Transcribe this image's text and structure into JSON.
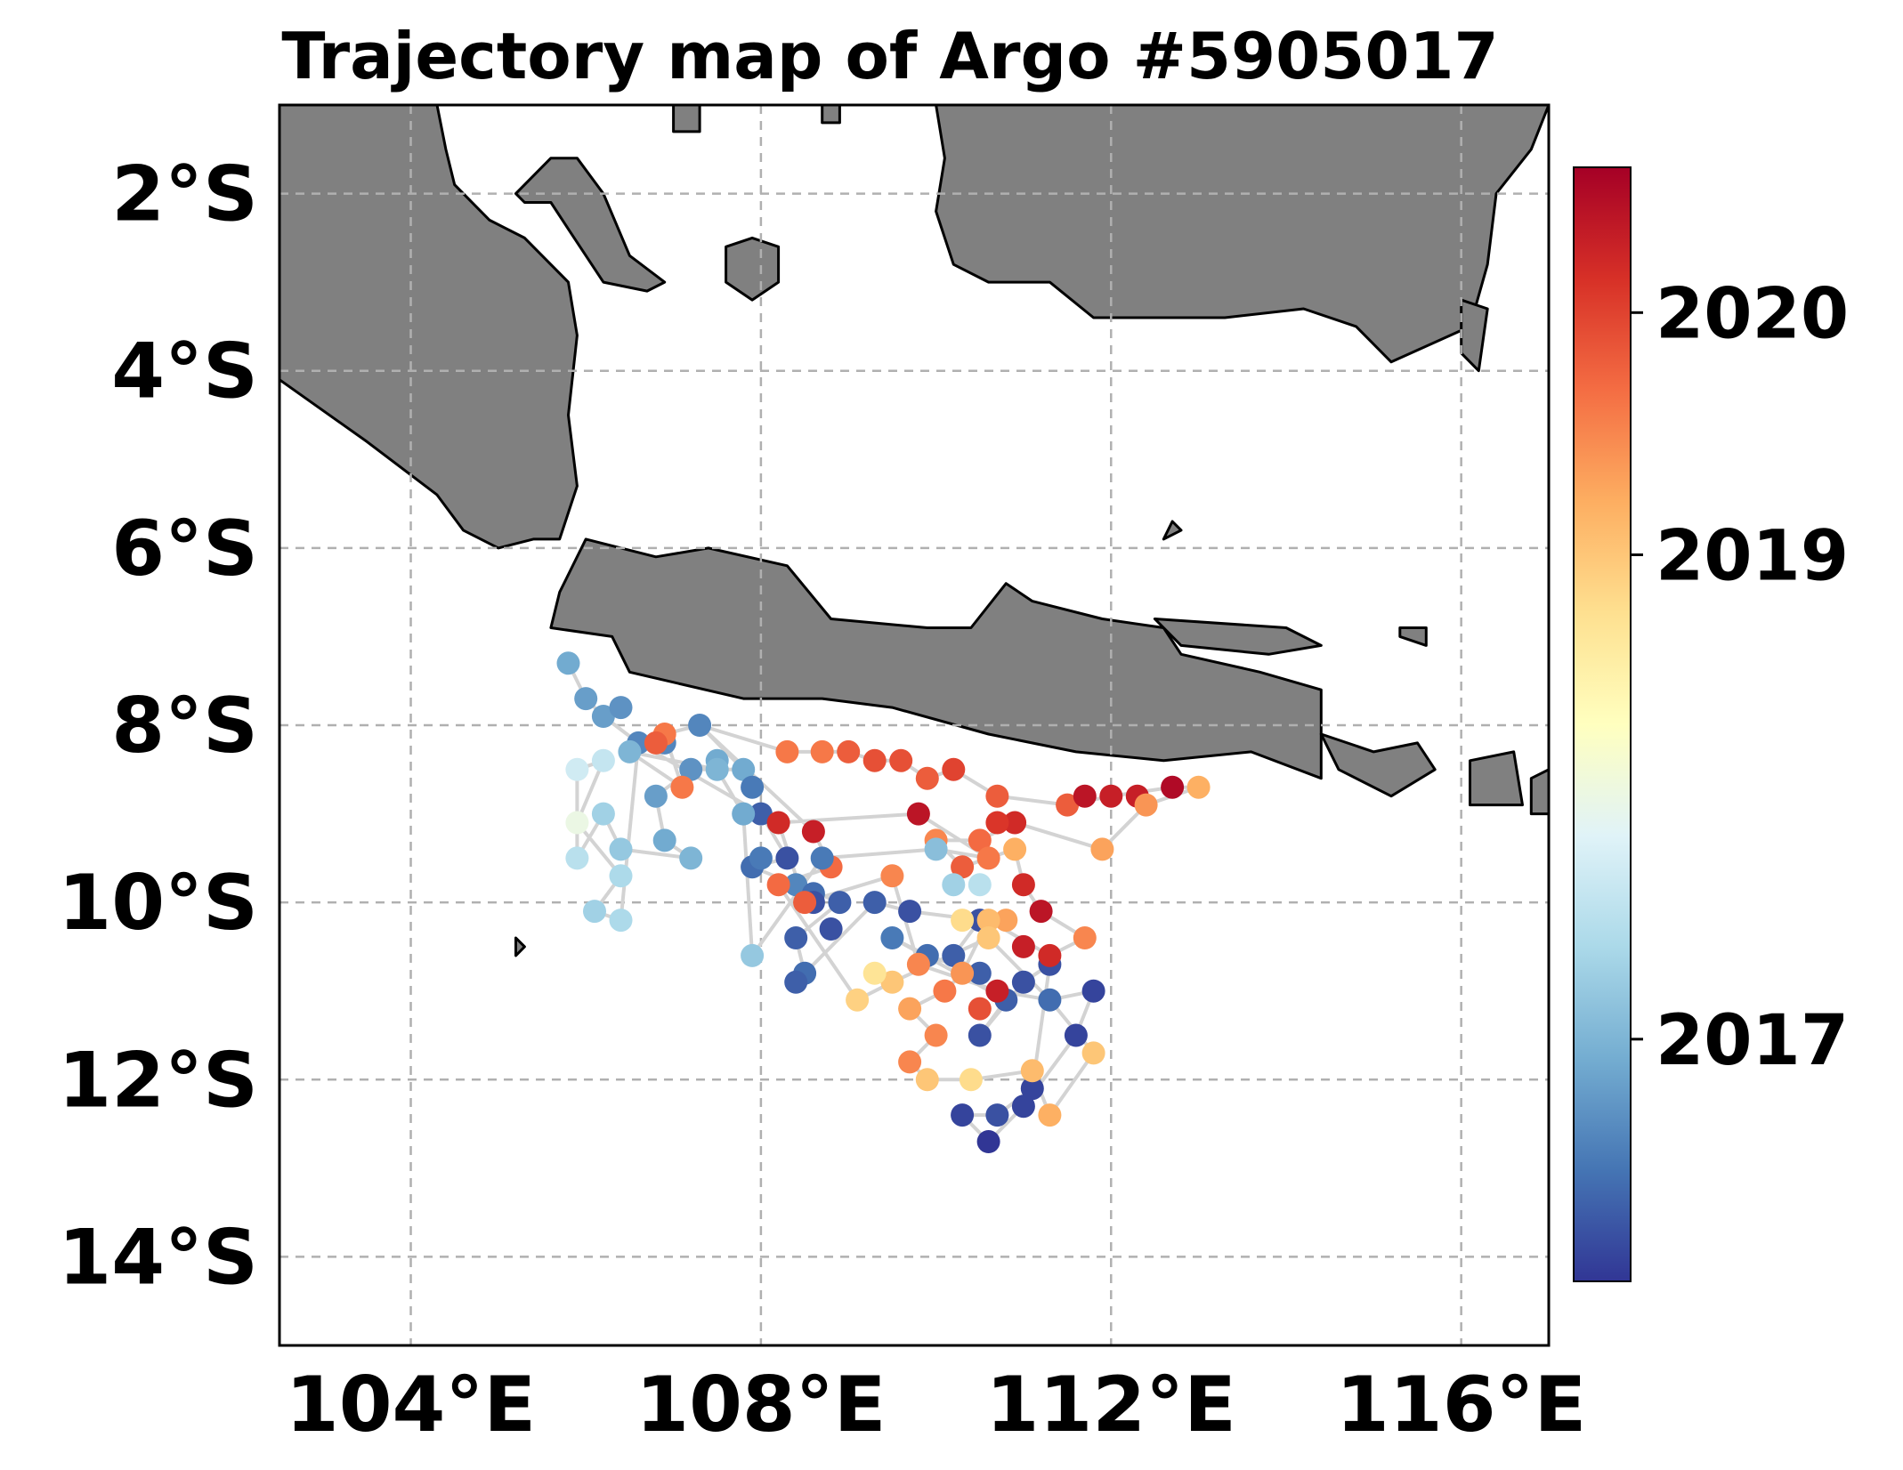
{
  "title": "Trajectory map of Argo #5905017",
  "x_ticks": [
    "104°E",
    "108°E",
    "112°E",
    "116°E"
  ],
  "y_ticks": [
    "2°S",
    "4°S",
    "6°S",
    "8°S",
    "10°S",
    "12°S",
    "14°S"
  ],
  "colorbar": {
    "ticks": [
      "2017",
      "2019",
      "2020"
    ],
    "cmap": "RdYlBu_r"
  },
  "colors": {
    "land": "#808080",
    "coast": "#000000",
    "track": "#d3d3d3",
    "grid": "#b0b0b0"
  },
  "chart_data": {
    "type": "scatter",
    "xlim": [
      102.5,
      117
    ],
    "ylim": [
      -15,
      -1
    ],
    "x_tick_values": [
      104,
      108,
      112,
      116
    ],
    "y_tick_values": [
      -2,
      -4,
      -6,
      -8,
      -10,
      -12,
      -14
    ],
    "gridlines": true,
    "colorbar_range": [
      2016.0,
      2020.6
    ],
    "colorbar_tick_values": [
      2017,
      2019,
      2020
    ],
    "points": [
      [
        105.8,
        -7.3,
        2016.9
      ],
      [
        106.0,
        -7.7,
        2016.8
      ],
      [
        106.2,
        -7.9,
        2016.8
      ],
      [
        106.4,
        -7.8,
        2016.7
      ],
      [
        106.6,
        -8.2,
        2016.6
      ],
      [
        106.9,
        -8.2,
        2016.6
      ],
      [
        107.3,
        -8.0,
        2016.6
      ],
      [
        106.9,
        -8.1,
        2019.6
      ],
      [
        106.8,
        -8.2,
        2019.8
      ],
      [
        107.5,
        -8.4,
        2016.9
      ],
      [
        107.8,
        -8.5,
        2016.9
      ],
      [
        107.9,
        -8.7,
        2016.5
      ],
      [
        107.2,
        -8.5,
        2016.7
      ],
      [
        106.8,
        -8.8,
        2016.8
      ],
      [
        106.9,
        -9.3,
        2016.9
      ],
      [
        107.2,
        -9.5,
        2017.0
      ],
      [
        106.4,
        -9.4,
        2017.2
      ],
      [
        106.2,
        -9.0,
        2017.3
      ],
      [
        105.9,
        -9.5,
        2017.5
      ],
      [
        105.9,
        -8.5,
        2017.7
      ],
      [
        106.2,
        -8.4,
        2017.6
      ],
      [
        105.9,
        -9.1,
        2018.0
      ],
      [
        106.4,
        -9.7,
        2017.4
      ],
      [
        106.1,
        -10.1,
        2017.3
      ],
      [
        106.4,
        -10.2,
        2017.4
      ],
      [
        108.0,
        -9.0,
        2016.3
      ],
      [
        108.3,
        -9.5,
        2016.2
      ],
      [
        107.9,
        -9.6,
        2016.4
      ],
      [
        108.4,
        -9.8,
        2016.6
      ],
      [
        108.6,
        -9.9,
        2016.4
      ],
      [
        108.9,
        -10.0,
        2016.3
      ],
      [
        108.6,
        -10.0,
        2016.2
      ],
      [
        108.4,
        -10.4,
        2016.3
      ],
      [
        108.8,
        -10.3,
        2016.2
      ],
      [
        108.5,
        -10.8,
        2016.4
      ],
      [
        108.4,
        -10.9,
        2016.3
      ],
      [
        109.3,
        -10.0,
        2016.3
      ],
      [
        110.5,
        -10.8,
        2016.3
      ],
      [
        110.2,
        -10.6,
        2016.3
      ],
      [
        110.5,
        -10.2,
        2016.2
      ],
      [
        109.7,
        -10.1,
        2016.2
      ],
      [
        109.5,
        -10.4,
        2016.5
      ],
      [
        109.9,
        -10.6,
        2016.4
      ],
      [
        110.5,
        -11.5,
        2016.2
      ],
      [
        110.8,
        -11.1,
        2016.3
      ],
      [
        111.0,
        -10.9,
        2016.2
      ],
      [
        111.3,
        -10.7,
        2016.2
      ],
      [
        111.1,
        -12.1,
        2016.1
      ],
      [
        111.0,
        -12.3,
        2016.1
      ],
      [
        110.7,
        -12.4,
        2016.2
      ],
      [
        110.3,
        -12.4,
        2016.1
      ],
      [
        110.6,
        -12.7,
        2016.0
      ],
      [
        111.6,
        -11.5,
        2016.1
      ],
      [
        111.8,
        -11.0,
        2016.1
      ],
      [
        111.3,
        -11.1,
        2016.4
      ],
      [
        108.3,
        -8.3,
        2019.6
      ],
      [
        108.7,
        -8.3,
        2019.6
      ],
      [
        109.0,
        -8.3,
        2019.8
      ],
      [
        109.3,
        -8.4,
        2019.9
      ],
      [
        109.6,
        -8.4,
        2019.9
      ],
      [
        109.9,
        -8.6,
        2019.8
      ],
      [
        110.2,
        -8.5,
        2020.0
      ],
      [
        110.7,
        -8.8,
        2019.8
      ],
      [
        111.5,
        -8.9,
        2019.8
      ],
      [
        111.7,
        -8.8,
        2020.4
      ],
      [
        112.0,
        -8.8,
        2020.3
      ],
      [
        112.3,
        -8.8,
        2020.3
      ],
      [
        112.7,
        -8.7,
        2020.5
      ],
      [
        113.0,
        -8.7,
        2019.2
      ],
      [
        112.4,
        -8.9,
        2019.4
      ],
      [
        111.9,
        -9.4,
        2019.3
      ],
      [
        110.9,
        -9.1,
        2020.2
      ],
      [
        110.7,
        -9.1,
        2020.1
      ],
      [
        110.5,
        -9.3,
        2019.7
      ],
      [
        110.0,
        -9.3,
        2019.5
      ],
      [
        110.3,
        -9.6,
        2019.8
      ],
      [
        110.9,
        -9.4,
        2019.2
      ],
      [
        111.0,
        -9.8,
        2020.2
      ],
      [
        111.2,
        -10.1,
        2020.4
      ],
      [
        111.7,
        -10.4,
        2019.5
      ],
      [
        111.3,
        -10.6,
        2020.2
      ],
      [
        111.0,
        -10.5,
        2020.3
      ],
      [
        110.8,
        -10.2,
        2019.3
      ],
      [
        110.6,
        -10.2,
        2019.1
      ],
      [
        110.3,
        -10.8,
        2019.4
      ],
      [
        110.1,
        -11.0,
        2019.6
      ],
      [
        110.6,
        -10.4,
        2019.0
      ],
      [
        109.5,
        -9.7,
        2019.5
      ],
      [
        109.8,
        -10.7,
        2019.5
      ],
      [
        109.7,
        -11.2,
        2019.3
      ],
      [
        110.0,
        -11.5,
        2019.5
      ],
      [
        109.7,
        -11.8,
        2019.5
      ],
      [
        109.9,
        -12.0,
        2019.0
      ],
      [
        110.4,
        -12.0,
        2018.8
      ],
      [
        111.1,
        -11.9,
        2019.1
      ],
      [
        111.3,
        -12.4,
        2019.2
      ],
      [
        111.8,
        -11.7,
        2019.0
      ],
      [
        109.5,
        -10.9,
        2019.0
      ],
      [
        109.1,
        -11.1,
        2018.9
      ],
      [
        110.3,
        -10.2,
        2018.8
      ],
      [
        110.7,
        -11.0,
        2020.3
      ],
      [
        110.5,
        -11.2,
        2019.9
      ],
      [
        109.3,
        -10.8,
        2018.7
      ],
      [
        108.2,
        -9.8,
        2019.7
      ],
      [
        108.5,
        -10.0,
        2019.8
      ],
      [
        108.8,
        -9.6,
        2019.7
      ],
      [
        108.6,
        -9.2,
        2020.3
      ],
      [
        108.2,
        -9.1,
        2020.2
      ],
      [
        109.8,
        -9.0,
        2020.4
      ],
      [
        110.6,
        -9.5,
        2019.6
      ],
      [
        110.2,
        -9.8,
        2017.3
      ],
      [
        110.5,
        -9.8,
        2017.5
      ],
      [
        110.0,
        -9.4,
        2017.1
      ],
      [
        107.9,
        -10.6,
        2017.2
      ],
      [
        107.8,
        -9.0,
        2016.9
      ],
      [
        108.0,
        -9.5,
        2016.5
      ],
      [
        108.7,
        -9.5,
        2016.5
      ],
      [
        107.5,
        -8.5,
        2017.0
      ],
      [
        106.5,
        -8.3,
        2017.0
      ],
      [
        107.1,
        -8.7,
        2019.6
      ]
    ],
    "track": [
      [
        105.8,
        -7.3
      ],
      [
        106.0,
        -7.7
      ],
      [
        106.2,
        -7.9
      ],
      [
        106.6,
        -8.2
      ],
      [
        106.9,
        -8.1
      ],
      [
        107.3,
        -8.0
      ],
      [
        107.8,
        -8.5
      ],
      [
        107.2,
        -8.5
      ],
      [
        106.8,
        -8.8
      ],
      [
        106.9,
        -9.3
      ],
      [
        107.2,
        -9.5
      ],
      [
        106.4,
        -9.4
      ],
      [
        106.2,
        -9.0
      ],
      [
        105.9,
        -9.5
      ],
      [
        105.9,
        -8.5
      ],
      [
        106.2,
        -8.4
      ],
      [
        105.9,
        -9.1
      ],
      [
        106.4,
        -9.7
      ],
      [
        106.1,
        -10.1
      ],
      [
        106.4,
        -10.2
      ],
      [
        106.6,
        -8.2
      ],
      [
        108.0,
        -9.0
      ],
      [
        108.3,
        -9.5
      ],
      [
        107.9,
        -9.6
      ],
      [
        108.4,
        -9.8
      ],
      [
        108.9,
        -10.0
      ],
      [
        108.4,
        -10.4
      ],
      [
        108.5,
        -10.8
      ],
      [
        108.4,
        -10.9
      ],
      [
        109.3,
        -10.0
      ],
      [
        109.7,
        -10.1
      ],
      [
        110.5,
        -10.2
      ],
      [
        110.2,
        -10.6
      ],
      [
        110.5,
        -10.8
      ],
      [
        109.9,
        -10.6
      ],
      [
        109.5,
        -10.4
      ],
      [
        110.8,
        -11.1
      ],
      [
        110.5,
        -11.5
      ],
      [
        111.0,
        -10.9
      ],
      [
        111.3,
        -10.7
      ],
      [
        111.1,
        -12.1
      ],
      [
        110.7,
        -12.4
      ],
      [
        110.3,
        -12.4
      ],
      [
        110.6,
        -12.7
      ],
      [
        111.0,
        -12.3
      ],
      [
        111.6,
        -11.5
      ],
      [
        111.8,
        -11.0
      ],
      [
        111.3,
        -11.1
      ],
      [
        110.6,
        -10.4
      ],
      [
        109.5,
        -10.9
      ],
      [
        109.1,
        -11.1
      ],
      [
        108.2,
        -9.8
      ],
      [
        108.8,
        -9.6
      ],
      [
        108.6,
        -9.2
      ],
      [
        107.3,
        -8.0
      ],
      [
        108.3,
        -8.3
      ],
      [
        109.0,
        -8.3
      ],
      [
        109.3,
        -8.4
      ],
      [
        109.6,
        -8.4
      ],
      [
        109.9,
        -8.6
      ],
      [
        110.2,
        -8.5
      ],
      [
        110.7,
        -8.8
      ],
      [
        111.5,
        -8.9
      ],
      [
        112.0,
        -8.8
      ],
      [
        112.7,
        -8.7
      ],
      [
        113.0,
        -8.7
      ],
      [
        112.4,
        -8.9
      ],
      [
        111.9,
        -9.4
      ],
      [
        110.9,
        -9.1
      ],
      [
        110.5,
        -9.3
      ],
      [
        110.0,
        -9.3
      ],
      [
        110.3,
        -9.6
      ],
      [
        110.9,
        -9.4
      ],
      [
        111.0,
        -9.8
      ],
      [
        111.2,
        -10.1
      ],
      [
        111.7,
        -10.4
      ],
      [
        111.3,
        -10.6
      ],
      [
        110.6,
        -10.2
      ],
      [
        110.3,
        -10.8
      ],
      [
        110.1,
        -11.0
      ],
      [
        109.7,
        -11.2
      ],
      [
        110.0,
        -11.5
      ],
      [
        109.7,
        -11.8
      ],
      [
        109.9,
        -12.0
      ],
      [
        110.4,
        -12.0
      ],
      [
        111.1,
        -11.9
      ],
      [
        111.3,
        -12.4
      ],
      [
        111.8,
        -11.7
      ],
      [
        111.3,
        -11.1
      ],
      [
        110.7,
        -11.0
      ],
      [
        109.8,
        -10.7
      ],
      [
        109.5,
        -9.7
      ],
      [
        108.5,
        -10.0
      ],
      [
        108.2,
        -9.1
      ],
      [
        109.8,
        -9.0
      ],
      [
        110.6,
        -9.5
      ],
      [
        110.0,
        -9.4
      ],
      [
        108.7,
        -9.5
      ],
      [
        107.9,
        -10.6
      ],
      [
        107.8,
        -9.0
      ],
      [
        107.5,
        -8.5
      ],
      [
        106.5,
        -8.3
      ],
      [
        107.1,
        -8.7
      ],
      [
        106.9,
        -8.1
      ]
    ],
    "land": [
      [
        [
          102.5,
          -4.1
        ],
        [
          103.5,
          -4.8
        ],
        [
          104.3,
          -5.4
        ],
        [
          104.6,
          -5.8
        ],
        [
          105.0,
          -6.0
        ],
        [
          105.4,
          -5.9
        ],
        [
          105.7,
          -5.9
        ],
        [
          105.9,
          -5.3
        ],
        [
          105.8,
          -4.5
        ],
        [
          105.9,
          -3.6
        ],
        [
          105.8,
          -3.0
        ],
        [
          105.3,
          -2.5
        ],
        [
          104.9,
          -2.3
        ],
        [
          104.5,
          -1.9
        ],
        [
          104.4,
          -1.5
        ],
        [
          104.3,
          -1.0
        ],
        [
          102.5,
          -1.0
        ]
      ],
      [
        [
          107.0,
          -1.0
        ],
        [
          107.3,
          -1.0
        ],
        [
          107.3,
          -1.3
        ],
        [
          107.0,
          -1.3
        ]
      ],
      [
        [
          108.7,
          -1.0
        ],
        [
          108.9,
          -1.0
        ],
        [
          108.9,
          -1.2
        ],
        [
          108.7,
          -1.2
        ]
      ],
      [
        [
          105.2,
          -2.0
        ],
        [
          105.6,
          -1.6
        ],
        [
          105.9,
          -1.6
        ],
        [
          106.2,
          -2.0
        ],
        [
          106.5,
          -2.7
        ],
        [
          106.9,
          -3.0
        ],
        [
          106.7,
          -3.1
        ],
        [
          106.2,
          -3.0
        ],
        [
          105.8,
          -2.4
        ],
        [
          105.6,
          -2.1
        ],
        [
          105.3,
          -2.1
        ]
      ],
      [
        [
          107.6,
          -2.6
        ],
        [
          107.9,
          -2.5
        ],
        [
          108.2,
          -2.6
        ],
        [
          108.2,
          -3.0
        ],
        [
          107.9,
          -3.2
        ],
        [
          107.6,
          -3.0
        ]
      ],
      [
        [
          110.0,
          -1.0
        ],
        [
          113.0,
          -1.0
        ],
        [
          116.5,
          -1.0
        ],
        [
          117.0,
          -1.0
        ],
        [
          116.8,
          -1.5
        ],
        [
          116.4,
          -2.0
        ],
        [
          116.3,
          -2.8
        ],
        [
          116.1,
          -3.5
        ],
        [
          115.2,
          -3.9
        ],
        [
          114.8,
          -3.5
        ],
        [
          114.2,
          -3.3
        ],
        [
          113.3,
          -3.4
        ],
        [
          112.7,
          -3.4
        ],
        [
          111.8,
          -3.4
        ],
        [
          111.3,
          -3.0
        ],
        [
          110.6,
          -3.0
        ],
        [
          110.2,
          -2.8
        ],
        [
          110.0,
          -2.2
        ],
        [
          110.1,
          -1.6
        ]
      ],
      [
        [
          116.0,
          -3.2
        ],
        [
          116.3,
          -3.3
        ],
        [
          116.2,
          -4.0
        ],
        [
          116.0,
          -3.8
        ]
      ],
      [
        [
          105.7,
          -6.5
        ],
        [
          106.0,
          -5.9
        ],
        [
          106.8,
          -6.1
        ],
        [
          107.4,
          -6.0
        ],
        [
          108.3,
          -6.2
        ],
        [
          108.8,
          -6.8
        ],
        [
          109.9,
          -6.9
        ],
        [
          110.4,
          -6.9
        ],
        [
          110.8,
          -6.4
        ],
        [
          111.1,
          -6.6
        ],
        [
          111.9,
          -6.8
        ],
        [
          112.6,
          -6.9
        ],
        [
          112.8,
          -7.2
        ],
        [
          113.7,
          -7.4
        ],
        [
          114.4,
          -7.6
        ],
        [
          114.4,
          -8.0
        ],
        [
          114.4,
          -8.6
        ],
        [
          113.6,
          -8.3
        ],
        [
          112.6,
          -8.4
        ],
        [
          111.6,
          -8.3
        ],
        [
          110.6,
          -8.1
        ],
        [
          109.5,
          -7.8
        ],
        [
          108.7,
          -7.7
        ],
        [
          107.8,
          -7.7
        ],
        [
          106.5,
          -7.4
        ],
        [
          106.3,
          -7.0
        ],
        [
          105.6,
          -6.9
        ]
      ],
      [
        [
          114.4,
          -8.1
        ],
        [
          115.0,
          -8.3
        ],
        [
          115.5,
          -8.2
        ],
        [
          115.7,
          -8.5
        ],
        [
          115.2,
          -8.8
        ],
        [
          114.6,
          -8.5
        ]
      ],
      [
        [
          116.1,
          -8.4
        ],
        [
          116.6,
          -8.3
        ],
        [
          116.7,
          -8.9
        ],
        [
          116.1,
          -8.9
        ]
      ],
      [
        [
          117.0,
          -8.5
        ],
        [
          116.8,
          -8.6
        ],
        [
          116.8,
          -9.0
        ],
        [
          117.0,
          -9.0
        ]
      ],
      [
        [
          112.5,
          -6.8
        ],
        [
          114.0,
          -6.9
        ],
        [
          114.4,
          -7.1
        ],
        [
          113.8,
          -7.2
        ],
        [
          112.8,
          -7.1
        ]
      ],
      [
        [
          112.7,
          -5.7
        ],
        [
          112.8,
          -5.8
        ],
        [
          112.6,
          -5.9
        ]
      ],
      [
        [
          115.3,
          -6.9
        ],
        [
          115.6,
          -6.9
        ],
        [
          115.6,
          -7.1
        ],
        [
          115.3,
          -7.0
        ]
      ],
      [
        [
          105.2,
          -10.4
        ],
        [
          105.3,
          -10.5
        ],
        [
          105.2,
          -10.6
        ]
      ]
    ]
  }
}
